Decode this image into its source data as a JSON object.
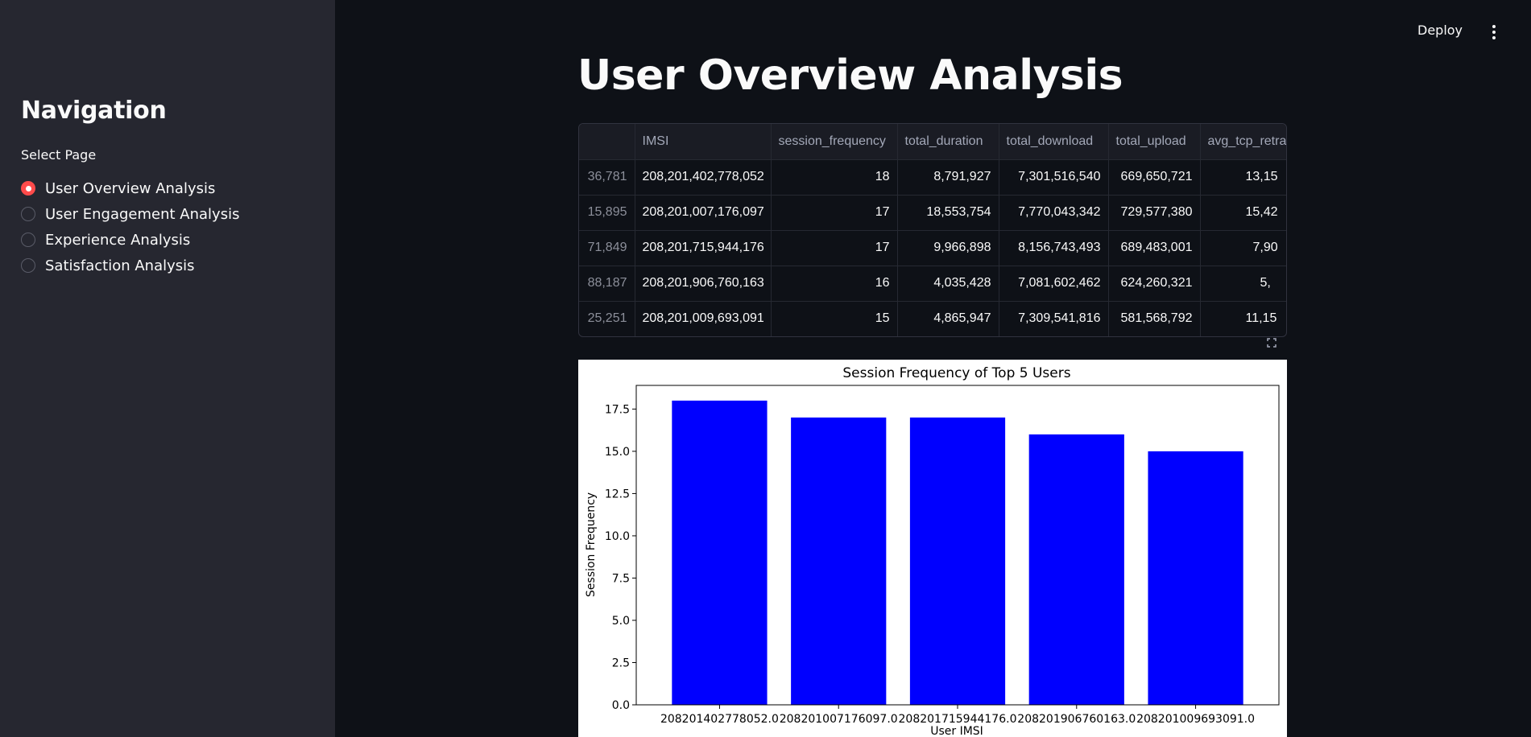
{
  "sidebar": {
    "title": "Navigation",
    "select_label": "Select Page",
    "items": [
      {
        "label": "User Overview Analysis",
        "selected": true
      },
      {
        "label": "User Engagement Analysis",
        "selected": false
      },
      {
        "label": "Experience Analysis",
        "selected": false
      },
      {
        "label": "Satisfaction Analysis",
        "selected": false
      }
    ]
  },
  "header": {
    "deploy_label": "Deploy",
    "menu_icon": "kebab-menu-icon"
  },
  "main": {
    "title": "User Overview Analysis",
    "table": {
      "columns": [
        "",
        "IMSI",
        "session_frequency",
        "total_duration",
        "total_download",
        "total_upload",
        "avg_tcp_retra"
      ],
      "rows": [
        [
          "36,781",
          "208,201,402,778,052",
          "18",
          "8,791,927",
          "7,301,516,540",
          "669,650,721",
          "13,15"
        ],
        [
          "15,895",
          "208,201,007,176,097",
          "17",
          "18,553,754",
          "7,770,043,342",
          "729,577,380",
          "15,42"
        ],
        [
          "71,849",
          "208,201,715,944,176",
          "17",
          "9,966,898",
          "8,156,743,493",
          "689,483,001",
          "7,90"
        ],
        [
          "88,187",
          "208,201,906,760,163",
          "16",
          "4,035,428",
          "7,081,602,462",
          "624,260,321",
          "5,"
        ],
        [
          "25,251",
          "208,201,009,693,091",
          "15",
          "4,865,947",
          "7,309,541,816",
          "581,568,792",
          "11,15"
        ]
      ]
    },
    "expand_icon": "fullscreen-icon"
  },
  "chart_data": {
    "type": "bar",
    "title": "Session Frequency of Top 5 Users",
    "xlabel": "User IMSI",
    "ylabel": "Session Frequency",
    "categories": [
      "208201402778052.0",
      "208201007176097.0",
      "208201715944176.0",
      "208201906760163.0",
      "208201009693091.0"
    ],
    "values": [
      18,
      17,
      17,
      16,
      15
    ],
    "yticks": [
      "0.0",
      "2.5",
      "5.0",
      "7.5",
      "10.0",
      "12.5",
      "15.0",
      "17.5"
    ],
    "ylim": [
      0,
      18.9
    ],
    "bar_color": "#0000ff",
    "grid": false,
    "legend": "none"
  }
}
